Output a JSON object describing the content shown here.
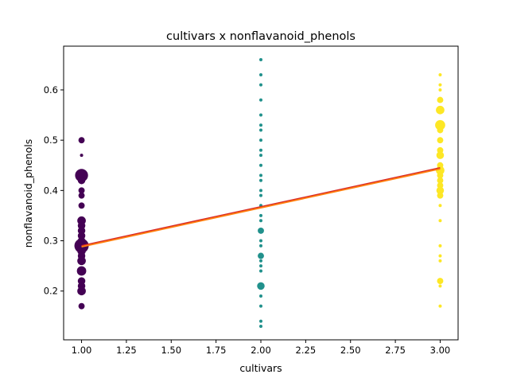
{
  "chart_data": {
    "type": "scatter",
    "title": "cultivars x nonflavanoid_phenols",
    "xlabel": "cultivars",
    "ylabel": "nonflavanoid_phenols",
    "xlim": [
      0.9,
      3.1
    ],
    "ylim": [
      0.103,
      0.687
    ],
    "xticks": [
      1.0,
      1.25,
      1.5,
      1.75,
      2.0,
      2.25,
      2.5,
      2.75,
      3.0
    ],
    "xtick_labels": [
      "1.00",
      "1.25",
      "1.50",
      "1.75",
      "2.00",
      "2.25",
      "2.50",
      "2.75",
      "3.00"
    ],
    "yticks": [
      0.2,
      0.3,
      0.4,
      0.5,
      0.6
    ],
    "ytick_labels": [
      "0.2",
      "0.3",
      "0.4",
      "0.5",
      "0.6"
    ],
    "grid": false,
    "legend": "none",
    "colors": {
      "cultivar_1": "#440154",
      "cultivar_2": "#21918c",
      "cultivar_3": "#fde725"
    },
    "series": [
      {
        "x": 1,
        "color_key": "cultivar_1",
        "points": [
          {
            "y": 0.5,
            "count": 2
          },
          {
            "y": 0.47,
            "count": 1
          },
          {
            "y": 0.43,
            "count": 11
          },
          {
            "y": 0.42,
            "count": 3
          },
          {
            "y": 0.4,
            "count": 2
          },
          {
            "y": 0.39,
            "count": 2
          },
          {
            "y": 0.37,
            "count": 2
          },
          {
            "y": 0.34,
            "count": 4
          },
          {
            "y": 0.33,
            "count": 3
          },
          {
            "y": 0.32,
            "count": 3
          },
          {
            "y": 0.31,
            "count": 3
          },
          {
            "y": 0.3,
            "count": 3
          },
          {
            "y": 0.29,
            "count": 14
          },
          {
            "y": 0.28,
            "count": 4
          },
          {
            "y": 0.27,
            "count": 3
          },
          {
            "y": 0.26,
            "count": 4
          },
          {
            "y": 0.24,
            "count": 5
          },
          {
            "y": 0.22,
            "count": 3
          },
          {
            "y": 0.21,
            "count": 3
          },
          {
            "y": 0.2,
            "count": 4
          },
          {
            "y": 0.17,
            "count": 2
          }
        ]
      },
      {
        "x": 2,
        "color_key": "cultivar_2",
        "points": [
          {
            "y": 0.66,
            "count": 1
          },
          {
            "y": 0.63,
            "count": 1
          },
          {
            "y": 0.61,
            "count": 1
          },
          {
            "y": 0.58,
            "count": 1
          },
          {
            "y": 0.55,
            "count": 1
          },
          {
            "y": 0.53,
            "count": 1
          },
          {
            "y": 0.52,
            "count": 1
          },
          {
            "y": 0.5,
            "count": 1
          },
          {
            "y": 0.48,
            "count": 1
          },
          {
            "y": 0.47,
            "count": 1
          },
          {
            "y": 0.45,
            "count": 1
          },
          {
            "y": 0.43,
            "count": 1
          },
          {
            "y": 0.42,
            "count": 1
          },
          {
            "y": 0.4,
            "count": 1
          },
          {
            "y": 0.39,
            "count": 1
          },
          {
            "y": 0.37,
            "count": 1
          },
          {
            "y": 0.35,
            "count": 1
          },
          {
            "y": 0.34,
            "count": 1
          },
          {
            "y": 0.32,
            "count": 2
          },
          {
            "y": 0.3,
            "count": 1
          },
          {
            "y": 0.29,
            "count": 1
          },
          {
            "y": 0.27,
            "count": 2
          },
          {
            "y": 0.26,
            "count": 1
          },
          {
            "y": 0.25,
            "count": 1
          },
          {
            "y": 0.24,
            "count": 1
          },
          {
            "y": 0.21,
            "count": 3
          },
          {
            "y": 0.19,
            "count": 1
          },
          {
            "y": 0.17,
            "count": 1
          },
          {
            "y": 0.14,
            "count": 1
          },
          {
            "y": 0.13,
            "count": 1
          }
        ]
      },
      {
        "x": 3,
        "color_key": "cultivar_3",
        "points": [
          {
            "y": 0.63,
            "count": 1
          },
          {
            "y": 0.61,
            "count": 1
          },
          {
            "y": 0.6,
            "count": 1
          },
          {
            "y": 0.58,
            "count": 2
          },
          {
            "y": 0.56,
            "count": 4
          },
          {
            "y": 0.53,
            "count": 6
          },
          {
            "y": 0.52,
            "count": 2
          },
          {
            "y": 0.5,
            "count": 2
          },
          {
            "y": 0.48,
            "count": 2
          },
          {
            "y": 0.47,
            "count": 3
          },
          {
            "y": 0.45,
            "count": 2
          },
          {
            "y": 0.44,
            "count": 4
          },
          {
            "y": 0.43,
            "count": 2
          },
          {
            "y": 0.42,
            "count": 2
          },
          {
            "y": 0.41,
            "count": 2
          },
          {
            "y": 0.4,
            "count": 3
          },
          {
            "y": 0.39,
            "count": 2
          },
          {
            "y": 0.37,
            "count": 1
          },
          {
            "y": 0.34,
            "count": 1
          },
          {
            "y": 0.29,
            "count": 1
          },
          {
            "y": 0.27,
            "count": 1
          },
          {
            "y": 0.26,
            "count": 1
          },
          {
            "y": 0.22,
            "count": 2
          },
          {
            "y": 0.21,
            "count": 1
          },
          {
            "y": 0.17,
            "count": 1
          }
        ]
      }
    ],
    "trend_lines": [
      {
        "color": "#d62728",
        "x": [
          1,
          3
        ],
        "y": [
          0.29,
          0.445
        ]
      },
      {
        "color": "#ff7f0e",
        "x": [
          1,
          3
        ],
        "y": [
          0.288,
          0.443
        ]
      }
    ]
  }
}
